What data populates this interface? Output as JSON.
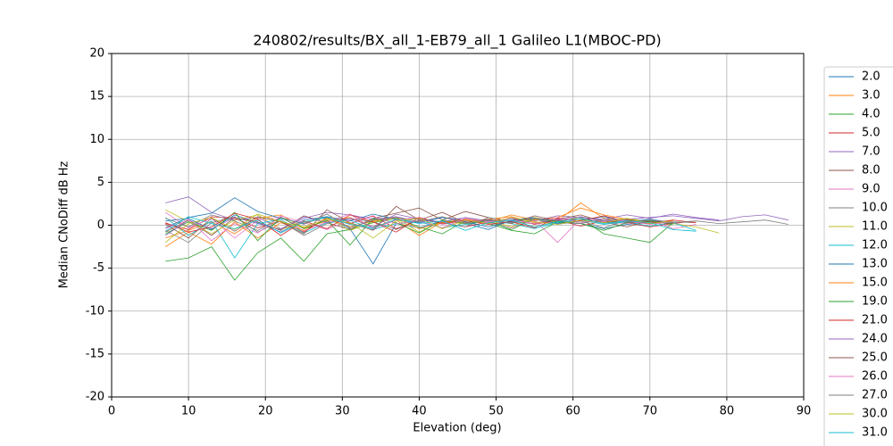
{
  "chart_data": {
    "type": "line",
    "title": "240802/results/BX_all_1-EB79_all_1 Galileo L1(MBOC-PD)",
    "xlabel": "Elevation (deg)",
    "ylabel": "Median CNoDiff dB Hz",
    "x": [
      7,
      10,
      13,
      16,
      19,
      22,
      25,
      28,
      31,
      34,
      37,
      40,
      43,
      46,
      49,
      52,
      55,
      58,
      61,
      64,
      67,
      70,
      73,
      76,
      79,
      82,
      85,
      88
    ],
    "xlim": [
      0,
      90
    ],
    "xticks": [
      0,
      10,
      20,
      30,
      40,
      50,
      60,
      70,
      80,
      90
    ],
    "ylim": [
      -20,
      20
    ],
    "yticks": [
      -20,
      -15,
      -10,
      -5,
      0,
      5,
      10,
      15,
      20
    ],
    "grid": true,
    "legend": "outside-right",
    "series": [
      {
        "name": "2.0",
        "color": "#1f77b4",
        "values": [
          0.5,
          0.8,
          -0.5,
          1.2,
          0.3,
          -0.8,
          0.6,
          1.0,
          -0.4,
          -4.5,
          0.2,
          -0.3,
          0.5,
          0.2,
          -0.5,
          0.6,
          0.9,
          0.3,
          0.2,
          -0.4,
          0.1,
          0.3,
          null,
          null,
          null,
          null,
          null,
          null
        ]
      },
      {
        "name": "3.0",
        "color": "#ff7f0e",
        "values": [
          -1.5,
          -0.6,
          0.4,
          -1.0,
          0.8,
          1.2,
          -0.3,
          0.5,
          0.9,
          -0.2,
          0.6,
          -1.2,
          0.4,
          0.2,
          0.7,
          1.0,
          0.3,
          0.5,
          2.6,
          0.8,
          0.4,
          0.2,
          0.6,
          null,
          null,
          null,
          null,
          null
        ]
      },
      {
        "name": "4.0",
        "color": "#2ca02c",
        "values": [
          -4.2,
          -3.8,
          -2.5,
          -6.4,
          -3.2,
          -1.5,
          -4.2,
          -1.0,
          -0.5,
          0.3,
          0.8,
          -0.2,
          -1.0,
          0.5,
          0.2,
          -0.6,
          -1.0,
          0.4,
          0.8,
          -1.0,
          -1.5,
          -2.0,
          0.3,
          null,
          null,
          null,
          null,
          null
        ]
      },
      {
        "name": "5.0",
        "color": "#d62728",
        "values": [
          0.2,
          -0.5,
          1.0,
          0.8,
          -0.3,
          0.5,
          -0.8,
          0.9,
          0.2,
          1.1,
          -0.4,
          0.6,
          0.3,
          -0.2,
          0.4,
          0.8,
          0.1,
          0.6,
          -0.1,
          0.5,
          0.3,
          -0.2,
          0.2,
          0.5,
          null,
          null,
          null,
          null
        ]
      },
      {
        "name": "7.0",
        "color": "#9467bd",
        "values": [
          2.6,
          3.3,
          1.5,
          0.6,
          0.9,
          -0.4,
          0.8,
          1.5,
          1.2,
          0.7,
          1.0,
          0.4,
          0.9,
          0.6,
          0.3,
          0.8,
          0.5,
          1.1,
          0.9,
          0.7,
          1.2,
          0.8,
          1.3,
          0.9,
          0.6,
          null,
          null,
          null
        ]
      },
      {
        "name": "8.0",
        "color": "#8c564b",
        "values": [
          -0.8,
          0.6,
          -1.2,
          0.9,
          0.4,
          -0.6,
          1.1,
          0.3,
          -0.5,
          0.8,
          1.4,
          2.0,
          0.6,
          1.6,
          0.9,
          0.4,
          0.2,
          0.7,
          1.2,
          0.4,
          -0.2,
          0.5,
          0.3,
          null,
          null,
          null,
          null,
          null
        ]
      },
      {
        "name": "9.0",
        "color": "#e377c2",
        "values": [
          1.5,
          -0.3,
          0.8,
          -1.5,
          0.6,
          1.0,
          -0.7,
          0.4,
          1.3,
          -0.4,
          0.6,
          0.9,
          0.1,
          0.5,
          0.3,
          -0.3,
          0.6,
          -2.0,
          0.8,
          0.4,
          0.2,
          0.6,
          -0.4,
          0.1,
          null,
          null,
          null,
          null
        ]
      },
      {
        "name": "10.0",
        "color": "#7f7f7f",
        "values": [
          -0.6,
          -2.0,
          0.3,
          1.0,
          -0.8,
          0.5,
          -1.2,
          0.2,
          0.8,
          0.4,
          -0.5,
          0.6,
          0.3,
          -0.2,
          0.9,
          0.4,
          0.7,
          0.1,
          0.5,
          -0.3,
          0.6,
          0.2,
          0.4,
          0.3,
          null,
          null,
          null,
          null
        ]
      },
      {
        "name": "11.0",
        "color": "#bcbd22",
        "values": [
          1.8,
          0.4,
          -1.0,
          0.6,
          1.2,
          -0.5,
          0.3,
          0.9,
          -0.6,
          0.4,
          0.8,
          -0.8,
          0.5,
          0.2,
          0.6,
          -0.2,
          0.9,
          0.3,
          1.0,
          0.5,
          0.8,
          0.4,
          0.2,
          -0.2,
          -0.9,
          null,
          null,
          null
        ]
      },
      {
        "name": "12.0",
        "color": "#17becf",
        "values": [
          0.9,
          -1.2,
          0.5,
          -3.8,
          0.2,
          0.7,
          -0.9,
          0.3,
          0.6,
          -0.5,
          0.2,
          0.4,
          -0.3,
          0.1,
          0.5,
          0.2,
          -0.4,
          0.3,
          0.6,
          0.1,
          0.4,
          -0.1,
          0.3,
          -0.6,
          null,
          null,
          null,
          null
        ]
      },
      {
        "name": "13.0",
        "color": "#1f77b4",
        "values": [
          -0.3,
          0.9,
          1.4,
          3.2,
          1.6,
          0.8,
          0.2,
          1.0,
          0.5,
          1.3,
          0.7,
          0.3,
          0.9,
          0.4,
          -0.2,
          0.5,
          0.8,
          0.2,
          0.6,
          1.0,
          0.4,
          0.7,
          0.3,
          null,
          null,
          null,
          null,
          null
        ]
      },
      {
        "name": "15.0",
        "color": "#ff7f0e",
        "values": [
          -2.5,
          -0.8,
          -2.2,
          0.4,
          -1.5,
          0.3,
          -0.6,
          0.8,
          -0.2,
          0.5,
          0.9,
          -0.4,
          0.3,
          0.7,
          0.4,
          1.2,
          0.6,
          0.9,
          2.0,
          1.2,
          0.7,
          0.3,
          0.5,
          null,
          null,
          null,
          null,
          null
        ]
      },
      {
        "name": "19.0",
        "color": "#2ca02c",
        "values": [
          -1.0,
          0.4,
          -0.6,
          1.5,
          -1.8,
          0.9,
          -0.4,
          0.6,
          -2.3,
          0.8,
          0.3,
          -0.9,
          0.6,
          0.2,
          0.5,
          -0.5,
          0.8,
          0.4,
          0.2,
          -0.6,
          0.3,
          0.5,
          0.1,
          null,
          null,
          null,
          null,
          null
        ]
      },
      {
        "name": "21.0",
        "color": "#d62728",
        "values": [
          0.3,
          -0.8,
          -0.2,
          1.4,
          0.7,
          -1.2,
          0.5,
          -0.4,
          1.2,
          0.4,
          -0.8,
          0.9,
          0.2,
          0.6,
          0.1,
          0.4,
          -0.3,
          0.8,
          0.5,
          1.1,
          0.4,
          0.2,
          0.6,
          0.3,
          null,
          null,
          null,
          null
        ]
      },
      {
        "name": "24.0",
        "color": "#9467bd",
        "values": [
          -1.2,
          0.6,
          -0.4,
          0.9,
          0.2,
          -0.5,
          1.0,
          0.3,
          0.8,
          -0.2,
          1.3,
          0.7,
          0.4,
          0.9,
          0.5,
          0.3,
          0.8,
          0.6,
          1.0,
          0.5,
          0.7,
          0.9,
          1.1,
          0.8,
          0.5,
          1.0,
          1.2,
          0.6
        ]
      },
      {
        "name": "25.0",
        "color": "#8c564b",
        "values": [
          0.1,
          -1.5,
          0.8,
          -0.7,
          1.0,
          0.4,
          -1.0,
          1.8,
          0.3,
          -0.6,
          2.2,
          0.6,
          1.5,
          0.3,
          0.7,
          0.2,
          1.1,
          0.5,
          0.8,
          0.3,
          0.6,
          0.4,
          0.2,
          null,
          null,
          null,
          null,
          null
        ]
      },
      {
        "name": "26.0",
        "color": "#e377c2",
        "values": [
          -0.4,
          0.7,
          -1.8,
          0.2,
          -0.9,
          1.1,
          0.3,
          -0.5,
          0.6,
          1.0,
          0.2,
          0.5,
          -0.3,
          0.8,
          0.4,
          0.6,
          0.2,
          0.9,
          0.3,
          0.7,
          0.5,
          0.1,
          0.4,
          null,
          null,
          null,
          null,
          null
        ]
      },
      {
        "name": "27.0",
        "color": "#7f7f7f",
        "values": [
          0.8,
          -0.2,
          1.2,
          0.5,
          -0.6,
          0.9,
          0.1,
          1.3,
          -0.3,
          0.6,
          0.9,
          0.4,
          1.0,
          0.2,
          0.6,
          0.3,
          0.8,
          0.5,
          0.2,
          0.7,
          0.4,
          0.6,
          0.3,
          0.5,
          0.2,
          0.4,
          0.6,
          0.1
        ]
      },
      {
        "name": "30.0",
        "color": "#bcbd22",
        "values": [
          -2.0,
          0.2,
          0.9,
          -0.5,
          1.3,
          0.4,
          -0.2,
          0.7,
          0.3,
          -1.5,
          0.5,
          0.8,
          -0.4,
          0.6,
          0.2,
          0.9,
          0.4,
          0.1,
          0.6,
          0.3,
          0.8,
          0.2,
          0.5,
          null,
          null,
          null,
          null,
          null
        ]
      },
      {
        "name": "31.0",
        "color": "#17becf",
        "values": [
          -0.7,
          1.0,
          0.2,
          -0.4,
          0.6,
          -0.9,
          0.4,
          0.9,
          0.1,
          -0.3,
          0.7,
          0.2,
          0.5,
          -0.6,
          0.3,
          0.6,
          -0.2,
          0.4,
          0.8,
          0.2,
          0.5,
          0.3,
          -0.5,
          -0.7,
          null,
          null,
          null,
          null
        ]
      }
    ]
  }
}
